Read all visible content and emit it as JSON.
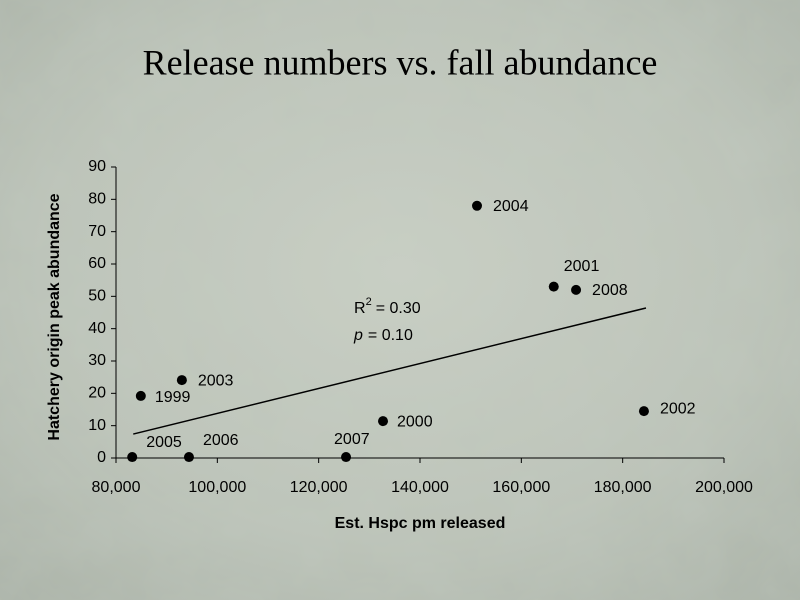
{
  "chart_data": {
    "type": "scatter",
    "title": "Release numbers vs. fall abundance",
    "x_label": "Est. Hspc pm released",
    "y_label": "Hatchery origin peak abundance",
    "labels": [
      "2004",
      "2001",
      "2008",
      "2002",
      "2000",
      "2007",
      "2003",
      "1999",
      "2005",
      "2006"
    ],
    "x": [
      151250,
      166400,
      170800,
      184200,
      132700,
      125400,
      93000,
      84900,
      83200,
      94400
    ],
    "values": [
      78,
      53,
      52,
      14.5,
      11.4,
      0.3,
      24.1,
      19.2,
      0.3,
      0.3
    ],
    "color": "#000000",
    "xlim": [
      80000,
      200000
    ],
    "xticks": [
      {
        "value": 80000,
        "label": "80,000"
      },
      {
        "value": 100000,
        "label": "100,000"
      },
      {
        "value": 120000,
        "label": "120,000"
      },
      {
        "value": 140000,
        "label": "140,000"
      },
      {
        "value": 160000,
        "label": "160,000"
      },
      {
        "value": 180000,
        "label": "180,000"
      },
      {
        "value": 200000,
        "label": "200,000"
      }
    ],
    "ylim": [
      0,
      90
    ],
    "yticks": [
      0,
      10,
      20,
      30,
      40,
      50,
      60,
      70,
      80,
      90
    ],
    "trendline": {
      "x": [
        83400,
        184600
      ],
      "values": [
        7.4,
        46.4
      ]
    },
    "r2_label": {
      "base": "R",
      "sup": "2",
      "text": "= 0.30"
    },
    "p_label": {
      "base": "p",
      "text": "= 0.10"
    }
  }
}
